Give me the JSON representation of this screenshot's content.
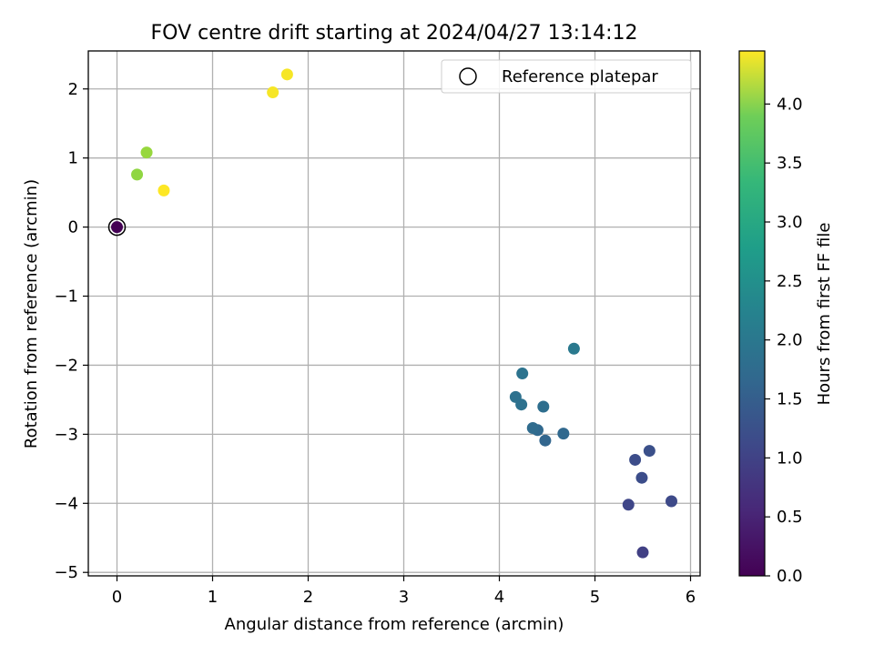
{
  "chart_data": {
    "type": "scatter",
    "title": "FOV centre drift starting at 2024/04/27 13:14:12",
    "xlabel": "Angular distance from reference (arcmin)",
    "ylabel": "Rotation from reference (arcmin)",
    "xlim": [
      -0.3,
      6.1
    ],
    "ylim": [
      -5.05,
      2.55
    ],
    "xticks": [
      0,
      1,
      2,
      3,
      4,
      5,
      6
    ],
    "yticks": [
      -5,
      -4,
      -3,
      -2,
      -1,
      0,
      1,
      2
    ],
    "tick_label_format": "minus sign uses −",
    "grid": true,
    "legend": {
      "label": "Reference platepar",
      "location": "top-right",
      "marker": "open circle"
    },
    "reference_point": {
      "x": 0,
      "y": 0
    },
    "colorbar": {
      "label": "Hours from first FF file",
      "colormap": "viridis",
      "range": [
        0.0,
        4.45
      ],
      "ticks": [
        0.0,
        0.5,
        1.0,
        1.5,
        2.0,
        2.5,
        3.0,
        3.5,
        4.0
      ]
    },
    "points": [
      {
        "x": 0.0,
        "y": 0.0,
        "hours": 0.0
      },
      {
        "x": 5.5,
        "y": -4.71,
        "hours": 0.85
      },
      {
        "x": 5.35,
        "y": -4.02,
        "hours": 0.95
      },
      {
        "x": 5.8,
        "y": -3.97,
        "hours": 1.0
      },
      {
        "x": 5.49,
        "y": -3.63,
        "hours": 1.05
      },
      {
        "x": 5.42,
        "y": -3.37,
        "hours": 1.05
      },
      {
        "x": 5.57,
        "y": -3.24,
        "hours": 1.1
      },
      {
        "x": 4.48,
        "y": -3.09,
        "hours": 1.45
      },
      {
        "x": 4.67,
        "y": -2.99,
        "hours": 1.5
      },
      {
        "x": 4.4,
        "y": -2.94,
        "hours": 1.5
      },
      {
        "x": 4.35,
        "y": -2.91,
        "hours": 1.55
      },
      {
        "x": 4.46,
        "y": -2.6,
        "hours": 1.6
      },
      {
        "x": 4.23,
        "y": -2.57,
        "hours": 1.65
      },
      {
        "x": 4.17,
        "y": -2.46,
        "hours": 1.65
      },
      {
        "x": 4.24,
        "y": -2.12,
        "hours": 1.7
      },
      {
        "x": 4.78,
        "y": -1.76,
        "hours": 1.8
      },
      {
        "x": 0.21,
        "y": 0.76,
        "hours": 3.7
      },
      {
        "x": 0.31,
        "y": 1.08,
        "hours": 3.75
      },
      {
        "x": 1.63,
        "y": 1.95,
        "hours": 4.4
      },
      {
        "x": 1.78,
        "y": 2.21,
        "hours": 4.4
      },
      {
        "x": 0.49,
        "y": 0.53,
        "hours": 4.45
      }
    ]
  }
}
